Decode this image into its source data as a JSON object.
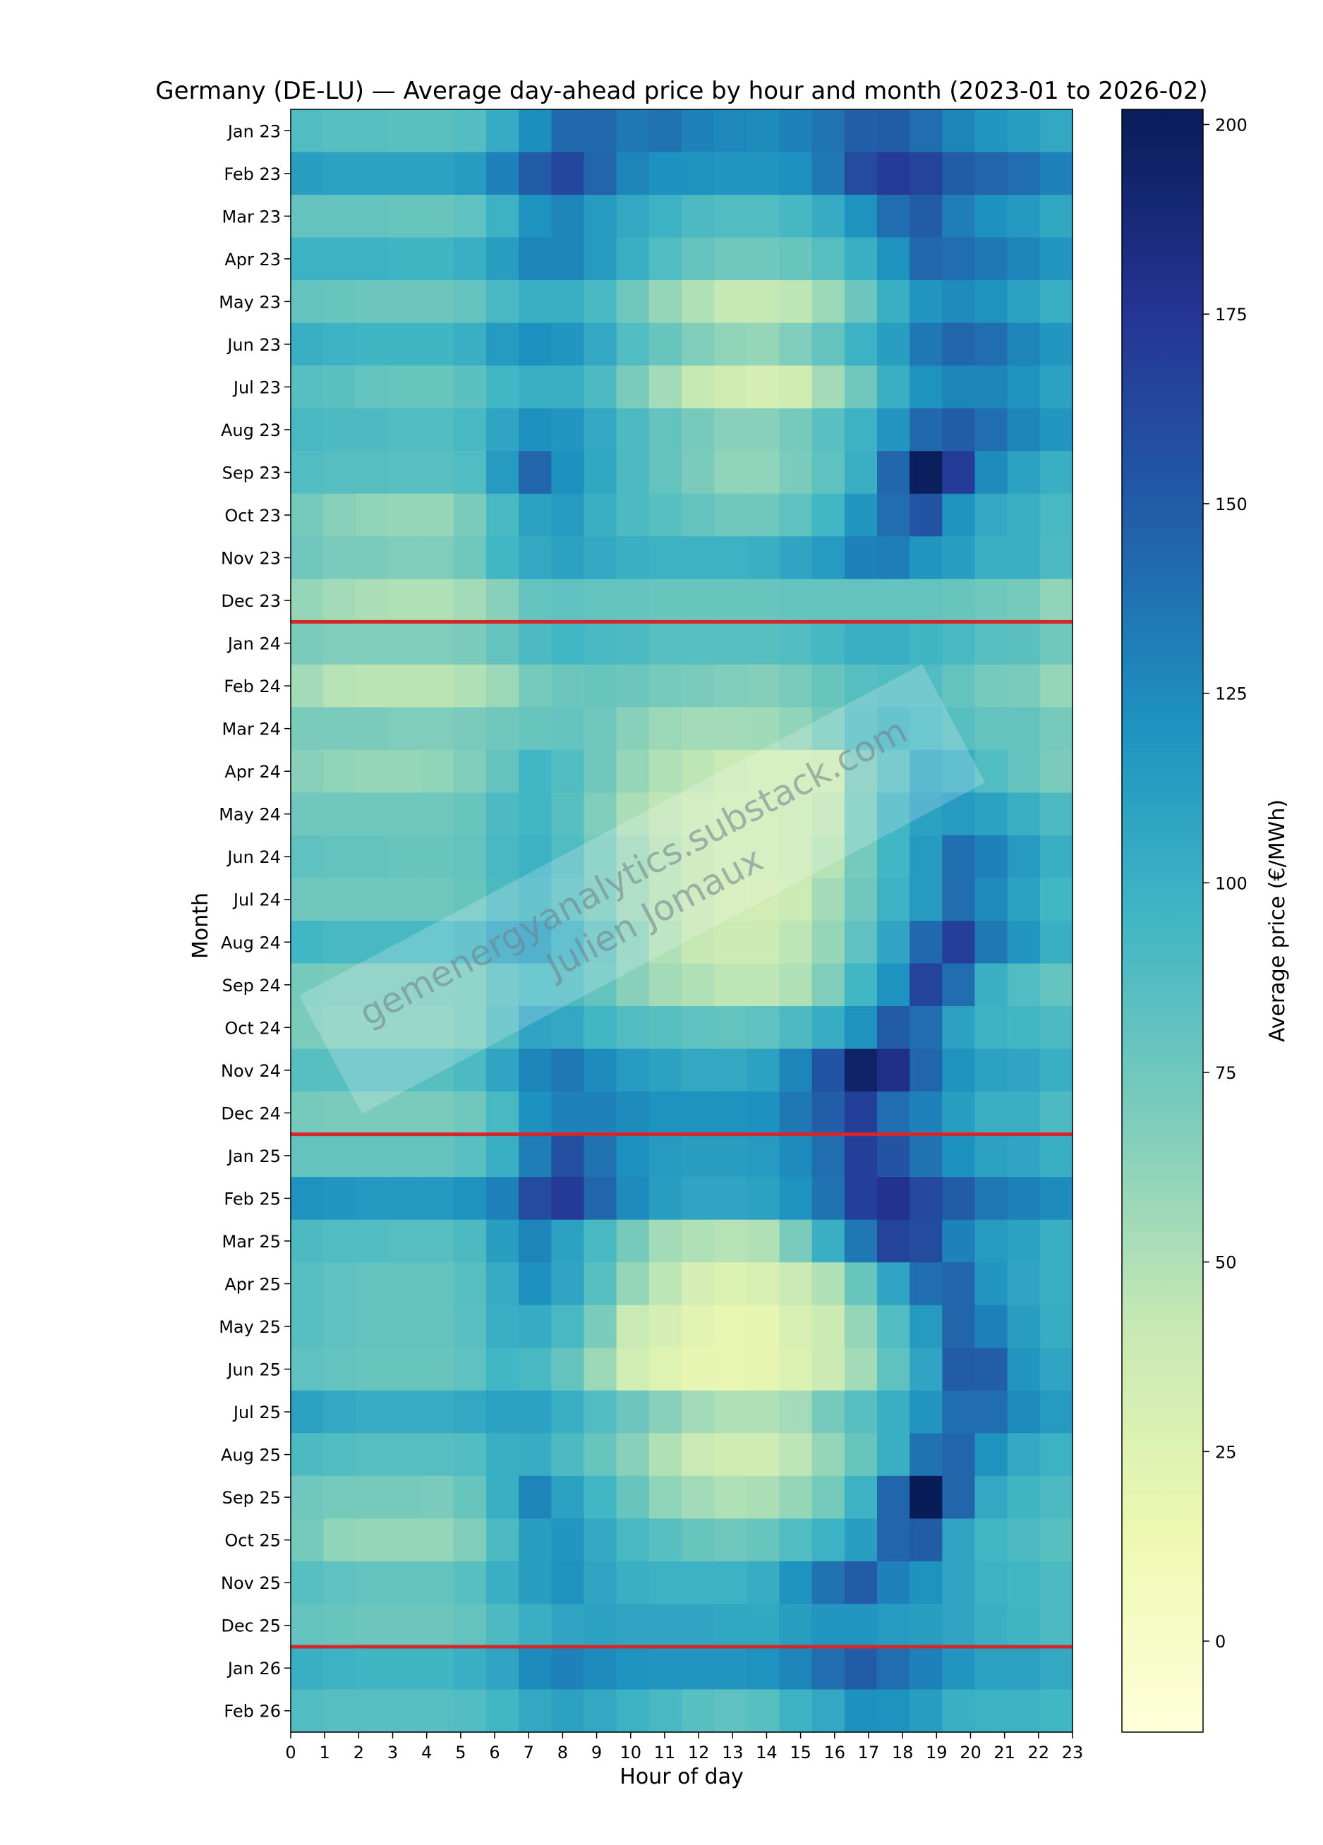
{
  "chart_data": {
    "type": "heatmap",
    "title": "Germany (DE-LU) — Average day-ahead price by hour and month (2023-01 to 2026-02)",
    "xlabel": "Hour of day",
    "ylabel": "Month",
    "x": [
      0,
      1,
      2,
      3,
      4,
      5,
      6,
      7,
      8,
      9,
      10,
      11,
      12,
      13,
      14,
      15,
      16,
      17,
      18,
      19,
      20,
      21,
      22,
      23
    ],
    "rows": [
      "Jan 23",
      "Feb 23",
      "Mar 23",
      "Apr 23",
      "May 23",
      "Jun 23",
      "Jul 23",
      "Aug 23",
      "Sep 23",
      "Oct 23",
      "Nov 23",
      "Dec 23",
      "Jan 24",
      "Feb 24",
      "Mar 24",
      "Apr 24",
      "May 24",
      "Jun 24",
      "Jul 24",
      "Aug 24",
      "Sep 24",
      "Oct 24",
      "Nov 24",
      "Dec 24",
      "Jan 25",
      "Feb 25",
      "Mar 25",
      "Apr 25",
      "May 25",
      "Jun 25",
      "Jul 25",
      "Aug 25",
      "Sep 25",
      "Oct 25",
      "Nov 25",
      "Dec 25",
      "Jan 26",
      "Feb 26"
    ],
    "values": [
      [
        88,
        85,
        85,
        83,
        83,
        87,
        103,
        123,
        142,
        143,
        135,
        138,
        130,
        127,
        125,
        130,
        137,
        148,
        150,
        140,
        128,
        118,
        113,
        105
      ],
      [
        112,
        110,
        110,
        110,
        110,
        114,
        130,
        150,
        163,
        145,
        128,
        122,
        120,
        118,
        118,
        122,
        135,
        160,
        170,
        165,
        150,
        145,
        140,
        130
      ],
      [
        80,
        80,
        80,
        78,
        78,
        82,
        98,
        120,
        128,
        115,
        105,
        98,
        90,
        88,
        88,
        93,
        103,
        120,
        140,
        150,
        132,
        122,
        116,
        106
      ],
      [
        98,
        98,
        98,
        96,
        96,
        100,
        112,
        128,
        128,
        115,
        100,
        88,
        80,
        75,
        75,
        78,
        86,
        100,
        120,
        143,
        140,
        135,
        128,
        118
      ],
      [
        80,
        78,
        76,
        76,
        76,
        80,
        92,
        100,
        100,
        92,
        75,
        60,
        50,
        42,
        42,
        45,
        58,
        76,
        100,
        118,
        125,
        120,
        110,
        100
      ],
      [
        100,
        98,
        96,
        96,
        96,
        100,
        115,
        122,
        118,
        105,
        88,
        78,
        68,
        62,
        60,
        68,
        80,
        98,
        112,
        135,
        145,
        140,
        128,
        118
      ],
      [
        85,
        83,
        80,
        78,
        78,
        83,
        95,
        100,
        100,
        90,
        70,
        55,
        42,
        36,
        32,
        36,
        55,
        75,
        100,
        120,
        128,
        128,
        120,
        110
      ],
      [
        92,
        90,
        90,
        88,
        88,
        92,
        108,
        122,
        118,
        105,
        90,
        80,
        72,
        65,
        65,
        72,
        84,
        98,
        118,
        143,
        150,
        140,
        128,
        118
      ],
      [
        88,
        86,
        86,
        84,
        84,
        88,
        115,
        145,
        122,
        106,
        90,
        80,
        70,
        62,
        62,
        70,
        82,
        100,
        145,
        200,
        170,
        125,
        110,
        100
      ],
      [
        72,
        65,
        62,
        60,
        60,
        70,
        92,
        110,
        115,
        100,
        90,
        85,
        80,
        75,
        75,
        82,
        95,
        118,
        140,
        155,
        120,
        105,
        100,
        92
      ],
      [
        75,
        70,
        70,
        68,
        68,
        75,
        95,
        105,
        110,
        105,
        100,
        98,
        98,
        98,
        100,
        108,
        115,
        130,
        132,
        118,
        112,
        100,
        100,
        90
      ],
      [
        60,
        55,
        52,
        50,
        50,
        55,
        65,
        80,
        82,
        80,
        80,
        78,
        78,
        78,
        78,
        80,
        80,
        80,
        80,
        80,
        78,
        75,
        72,
        62
      ],
      [
        70,
        68,
        68,
        68,
        68,
        70,
        80,
        90,
        95,
        92,
        90,
        86,
        85,
        85,
        85,
        88,
        93,
        100,
        100,
        96,
        92,
        85,
        83,
        75
      ],
      [
        55,
        48,
        46,
        46,
        46,
        50,
        58,
        72,
        76,
        78,
        76,
        72,
        70,
        68,
        66,
        70,
        78,
        86,
        88,
        88,
        80,
        72,
        70,
        60
      ],
      [
        70,
        70,
        70,
        68,
        68,
        70,
        75,
        78,
        80,
        75,
        65,
        58,
        55,
        55,
        56,
        62,
        72,
        88,
        95,
        92,
        85,
        80,
        80,
        72
      ],
      [
        65,
        62,
        60,
        60,
        62,
        68,
        80,
        95,
        88,
        75,
        60,
        50,
        45,
        40,
        38,
        38,
        40,
        70,
        85,
        105,
        100,
        88,
        80,
        70
      ],
      [
        75,
        75,
        75,
        75,
        75,
        78,
        90,
        95,
        85,
        68,
        52,
        45,
        40,
        38,
        38,
        40,
        45,
        72,
        95,
        110,
        115,
        110,
        100,
        90
      ],
      [
        82,
        80,
        80,
        78,
        78,
        80,
        92,
        98,
        88,
        72,
        58,
        48,
        42,
        38,
        38,
        40,
        48,
        72,
        95,
        115,
        140,
        130,
        115,
        100
      ],
      [
        75,
        75,
        75,
        75,
        75,
        78,
        90,
        95,
        85,
        72,
        58,
        48,
        42,
        36,
        34,
        38,
        55,
        75,
        98,
        115,
        140,
        125,
        110,
        95
      ],
      [
        95,
        92,
        92,
        92,
        92,
        95,
        108,
        112,
        98,
        82,
        65,
        50,
        42,
        38,
        38,
        45,
        60,
        82,
        108,
        143,
        168,
        135,
        118,
        100
      ],
      [
        72,
        70,
        70,
        70,
        70,
        72,
        85,
        92,
        90,
        80,
        65,
        55,
        50,
        45,
        45,
        50,
        68,
        95,
        120,
        165,
        140,
        100,
        88,
        80
      ],
      [
        70,
        68,
        68,
        68,
        68,
        72,
        88,
        108,
        105,
        95,
        88,
        85,
        82,
        80,
        82,
        90,
        102,
        120,
        150,
        140,
        110,
        98,
        95,
        90
      ],
      [
        85,
        85,
        85,
        85,
        85,
        90,
        108,
        128,
        135,
        125,
        115,
        110,
        105,
        105,
        110,
        128,
        155,
        195,
        180,
        145,
        120,
        110,
        108,
        100
      ],
      [
        72,
        70,
        70,
        70,
        70,
        75,
        92,
        122,
        130,
        130,
        125,
        120,
        120,
        120,
        122,
        135,
        148,
        168,
        140,
        130,
        112,
        100,
        100,
        90
      ],
      [
        80,
        80,
        80,
        80,
        80,
        84,
        100,
        132,
        158,
        138,
        122,
        115,
        112,
        112,
        115,
        125,
        140,
        168,
        155,
        138,
        122,
        110,
        108,
        100
      ],
      [
        120,
        118,
        116,
        116,
        116,
        120,
        130,
        160,
        172,
        145,
        125,
        112,
        108,
        108,
        110,
        120,
        138,
        168,
        178,
        162,
        150,
        135,
        130,
        125
      ],
      [
        90,
        88,
        88,
        86,
        86,
        90,
        112,
        128,
        110,
        92,
        72,
        55,
        50,
        48,
        50,
        70,
        100,
        135,
        165,
        160,
        130,
        115,
        110,
        100
      ],
      [
        85,
        82,
        80,
        80,
        80,
        85,
        103,
        122,
        108,
        85,
        60,
        45,
        32,
        28,
        30,
        40,
        50,
        78,
        108,
        140,
        145,
        118,
        108,
        100
      ],
      [
        85,
        82,
        80,
        80,
        80,
        84,
        100,
        103,
        92,
        70,
        40,
        32,
        22,
        18,
        20,
        30,
        38,
        60,
        88,
        115,
        145,
        130,
        112,
        102
      ],
      [
        82,
        80,
        78,
        78,
        78,
        82,
        95,
        92,
        80,
        58,
        35,
        25,
        20,
        18,
        20,
        28,
        38,
        55,
        82,
        108,
        150,
        148,
        118,
        108
      ],
      [
        110,
        105,
        102,
        102,
        102,
        105,
        110,
        110,
        100,
        88,
        76,
        65,
        55,
        50,
        50,
        55,
        72,
        85,
        100,
        118,
        140,
        140,
        125,
        115
      ],
      [
        90,
        88,
        86,
        86,
        86,
        88,
        100,
        102,
        90,
        78,
        65,
        50,
        40,
        36,
        36,
        45,
        60,
        78,
        100,
        138,
        145,
        120,
        105,
        98
      ],
      [
        75,
        72,
        72,
        72,
        70,
        78,
        100,
        128,
        110,
        95,
        78,
        62,
        55,
        50,
        52,
        60,
        72,
        98,
        145,
        210,
        145,
        105,
        96,
        90
      ],
      [
        72,
        62,
        60,
        60,
        60,
        68,
        90,
        112,
        118,
        105,
        92,
        85,
        78,
        75,
        78,
        88,
        98,
        112,
        145,
        150,
        108,
        95,
        90,
        85
      ],
      [
        85,
        82,
        80,
        80,
        80,
        85,
        100,
        112,
        120,
        108,
        100,
        98,
        98,
        98,
        102,
        120,
        138,
        150,
        130,
        120,
        108,
        98,
        95,
        90
      ],
      [
        80,
        78,
        76,
        76,
        76,
        80,
        90,
        100,
        108,
        110,
        108,
        108,
        108,
        106,
        106,
        112,
        118,
        118,
        115,
        112,
        108,
        100,
        96,
        90
      ],
      [
        100,
        98,
        96,
        96,
        96,
        100,
        108,
        125,
        130,
        125,
        120,
        118,
        118,
        118,
        120,
        128,
        140,
        150,
        140,
        130,
        118,
        110,
        110,
        105
      ],
      [
        88,
        86,
        86,
        86,
        86,
        88,
        95,
        105,
        110,
        105,
        98,
        92,
        85,
        82,
        85,
        98,
        105,
        122,
        120,
        112,
        100,
        98,
        98,
        95
      ]
    ],
    "zlabel": "Average price (€/MWh)",
    "zlim": [
      -12,
      202
    ],
    "colorbar_ticks": [
      0,
      25,
      50,
      75,
      100,
      125,
      150,
      175,
      200
    ],
    "colormap": "YlGnBu",
    "colormap_stops": [
      "#ffffd9",
      "#edf8b1",
      "#c7e9b4",
      "#7fcdbb",
      "#41b6c4",
      "#1d91c0",
      "#225ea8",
      "#253494",
      "#081d58"
    ],
    "year_separators_after": [
      "Dec 23",
      "Dec 24",
      "Dec 25"
    ],
    "separator_color": "#d62728",
    "watermark": [
      "gemenergyanalytics.substack.com",
      "Julien Jomaux"
    ]
  }
}
